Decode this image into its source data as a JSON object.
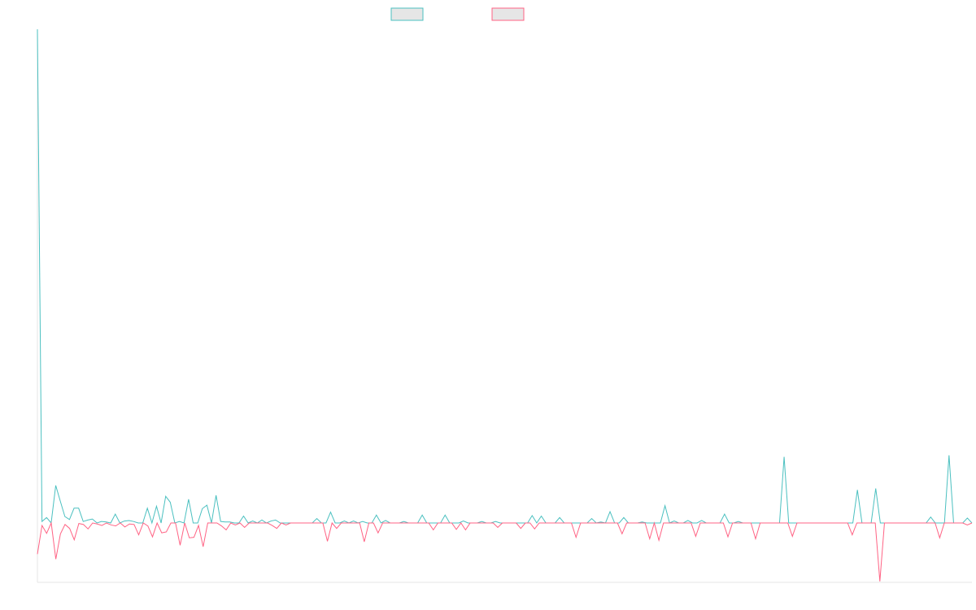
{
  "chart_data": {
    "type": "line",
    "title": "",
    "xlabel": "",
    "ylabel": "",
    "x_count": 200,
    "ylim": [
      -12,
      100
    ],
    "grid": false,
    "legend_position": "top-center",
    "series": [
      {
        "color": "#4bc0c0",
        "values": [
          100,
          0.3,
          1.1,
          0,
          7.6,
          4.4,
          1.3,
          0.7,
          3.0,
          3.0,
          0.3,
          0.6,
          0.8,
          0.0,
          0.3,
          0.2,
          0.0,
          1.8,
          0.0,
          0.4,
          0.5,
          0.3,
          0.0,
          0.0,
          3.0,
          0.0,
          3.4,
          0.0,
          5.4,
          4.2,
          0.0,
          0.3,
          0.0,
          4.8,
          0.0,
          0.0,
          2.9,
          3.6,
          0.0,
          5.6,
          0.3,
          0.2,
          0.2,
          0.0,
          0.0,
          1.4,
          0.0,
          0.4,
          0.0,
          0.6,
          0.0,
          0.4,
          0.6,
          0.0,
          0.0,
          0.0,
          0.0,
          0.0,
          0.0,
          0.0,
          0.0,
          0.9,
          0.0,
          0.0,
          2.2,
          0.0,
          0.0,
          0.4,
          0.0,
          0.4,
          0.0,
          0.3,
          0.0,
          0.0,
          1.6,
          0.0,
          0.5,
          0.0,
          0.0,
          0.0,
          0.3,
          0.0,
          0.0,
          0.0,
          1.6,
          0.0,
          0.0,
          0.0,
          0.0,
          1.6,
          0.0,
          0.0,
          0.0,
          0.4,
          0.0,
          0.0,
          0.0,
          0.3,
          0.0,
          0.0,
          0.3,
          0.0,
          0.0,
          0.0,
          0.0,
          0.0,
          0.0,
          0.0,
          1.5,
          0.0,
          1.4,
          0.0,
          0.0,
          0.0,
          1.1,
          0.0,
          0.0,
          0.0,
          0.0,
          0.0,
          0.0,
          0.9,
          0.0,
          0.2,
          0.0,
          2.3,
          0.0,
          0.0,
          1.1,
          0.0,
          0.0,
          0.0,
          0.2,
          0.0,
          0.0,
          0.0,
          0.0,
          3.5,
          0.0,
          0.4,
          0.0,
          0.0,
          0.5,
          0.0,
          0.0,
          0.5,
          0.0,
          0.0,
          0.0,
          0.0,
          1.8,
          0.0,
          0.0,
          0.3,
          0.0,
          0.0,
          0.0,
          0.0,
          0.0,
          0.0,
          0.0,
          0.0,
          0.0,
          13.4,
          0.0,
          0.0,
          0.0,
          0.0,
          0.0,
          0.0,
          0.0,
          0.0,
          0.0,
          0.0,
          0.0,
          0.0,
          0.0,
          0.0,
          0.0,
          6.7,
          0.0,
          0.0,
          0.0,
          7.0,
          0.0,
          0.0,
          0.0,
          0.0,
          0.0,
          0.0,
          0.0,
          0.0,
          0.0,
          0.0,
          0.0,
          1.2,
          0.0,
          0.0,
          0.0,
          13.7,
          0.0,
          0.0,
          0.0,
          1.0,
          0.0
        ]
      },
      {
        "color": "#ff6384",
        "values": [
          -6.3,
          -0.5,
          -2.1,
          0,
          -7.3,
          -2.2,
          -0.3,
          -1.1,
          -3.4,
          -0.1,
          -0.3,
          -1.2,
          0.0,
          -0.2,
          -0.5,
          0.0,
          -0.4,
          -0.6,
          0.0,
          -0.8,
          -0.2,
          -0.3,
          -2.4,
          0.0,
          -0.6,
          -2.8,
          0.0,
          -2.0,
          -1.8,
          0.0,
          0.0,
          -4.5,
          0.0,
          -3.0,
          -2.9,
          -0.5,
          -4.8,
          0.0,
          0.0,
          0.0,
          -0.6,
          -1.4,
          0.0,
          -0.4,
          0.0,
          -0.9,
          0.0,
          0.0,
          0.0,
          0.0,
          0.0,
          -0.5,
          -1.1,
          0.0,
          -0.4,
          0.0,
          0.0,
          0.0,
          0.0,
          0.0,
          0.0,
          0.0,
          0.0,
          -3.7,
          0.0,
          -1.1,
          0.0,
          0.0,
          0.0,
          0.0,
          0.0,
          -3.8,
          0.0,
          0.0,
          -2.0,
          0.0,
          0.0,
          0.0,
          0.0,
          0.0,
          0.0,
          0.0,
          0.0,
          0.0,
          0.0,
          0.0,
          -1.4,
          0.0,
          0.0,
          0.0,
          0.0,
          -1.3,
          0.0,
          -1.4,
          0.0,
          0.0,
          0.0,
          0.0,
          0.0,
          0.0,
          -0.9,
          0.0,
          0.0,
          0.0,
          0.0,
          -1.1,
          0.0,
          0.0,
          -1.2,
          0.0,
          0.0,
          0.0,
          0.0,
          0.0,
          0.0,
          0.0,
          0.0,
          -2.9,
          0.0,
          0.0,
          0.0,
          0.0,
          0.0,
          0.0,
          0.0,
          0.0,
          0.0,
          -2.2,
          0.0,
          0.0,
          0.0,
          0.0,
          0.0,
          -3.2,
          0.0,
          -3.5,
          0.0,
          0.0,
          0.0,
          0.0,
          0.0,
          0.0,
          0.0,
          -2.7,
          0.0,
          0.0,
          0.0,
          0.0,
          0.0,
          0.0,
          -2.8,
          0.0,
          0.0,
          0.0,
          0.0,
          0.0,
          -3.2,
          0.0,
          0.0,
          0.0,
          0.0,
          0.0,
          0.0,
          0.0,
          -2.7,
          0.0,
          0.0,
          0.0,
          0.0,
          0.0,
          0.0,
          0.0,
          0.0,
          0.0,
          0.0,
          0.0,
          0.0,
          -2.4,
          0.0,
          0.0,
          0.0,
          0.0,
          0.0,
          -11.8,
          0.0,
          0.0,
          0.0,
          0.0,
          0.0,
          0.0,
          0.0,
          0.0,
          0.0,
          0.0,
          0.0,
          0.0,
          -3.0,
          0.0,
          0.0,
          0.0,
          0.0,
          0.0,
          -0.4,
          0.0
        ]
      }
    ]
  }
}
